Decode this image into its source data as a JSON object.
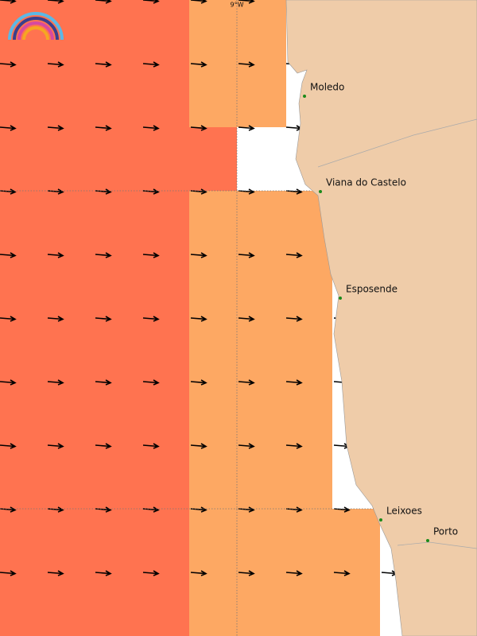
{
  "map": {
    "axis_label": "9°W",
    "places": [
      {
        "label": "Moledo"
      },
      {
        "label": "Viana do Castelo"
      },
      {
        "label": "Esposende"
      },
      {
        "label": "Leixoes"
      },
      {
        "label": "Porto"
      }
    ]
  }
}
